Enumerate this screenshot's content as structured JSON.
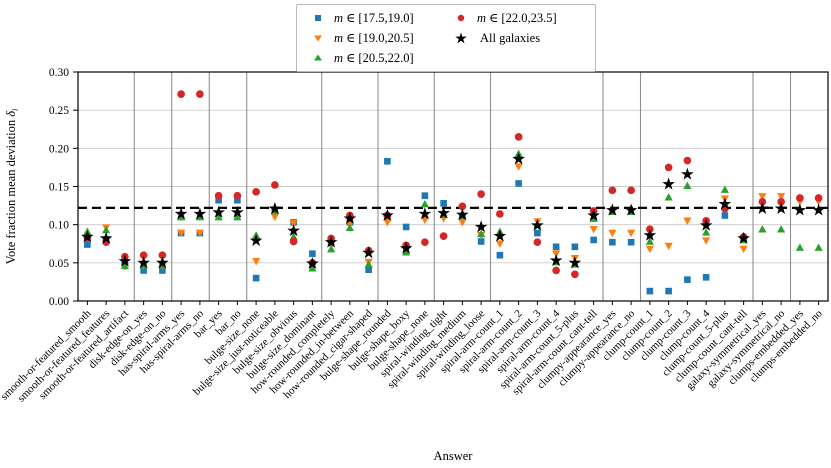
{
  "figure": {
    "xlabel": "Answer",
    "ylabel_text": "Vote fraction mean deviation ",
    "ylabel_symbol": "δ",
    "ylabel_subscript": "i"
  },
  "legend": {
    "items": [
      {
        "var": "m",
        "rest": "∈ [17.5,19.0]",
        "marker": "square",
        "color": "#1f77b4"
      },
      {
        "var": "m",
        "rest": "∈ [19.0,20.5]",
        "marker": "triangle-down",
        "color": "#ff7f0e"
      },
      {
        "var": "m",
        "rest": "∈ [20.5,22.0]",
        "marker": "triangle-up",
        "color": "#2ca02c"
      },
      {
        "var": "m",
        "rest": "∈ [22.0,23.5]",
        "marker": "circle",
        "color": "#d62728"
      },
      {
        "var": "",
        "rest": "All galaxies",
        "marker": "star",
        "color": "#000000"
      }
    ]
  },
  "chart_data": {
    "type": "scatter",
    "title": "",
    "xlabel": "Answer",
    "ylabel": "Vote fraction mean deviation δ_i",
    "ylim": [
      0.0,
      0.3
    ],
    "yticks": [
      "0.00",
      "0.05",
      "0.10",
      "0.15",
      "0.20",
      "0.25",
      "0.30"
    ],
    "grid": true,
    "legend_position": "top-center",
    "dashed_line_y": 0.122,
    "group_separators_after_index": [
      2,
      4,
      6,
      8,
      12,
      15,
      18,
      21,
      27,
      29,
      35,
      37
    ],
    "categories": [
      "smooth-or-featured_smooth",
      "smooth-or-featured_features",
      "smooth-or-featured_artifact",
      "disk-edge-on_yes",
      "disk-edge-on_no",
      "has-spiral-arms_yes",
      "has-spiral-arms_no",
      "bar_yes",
      "bar_no",
      "bulge-size_none",
      "bulge-size_just-noticeable",
      "bulge-size_obvious",
      "bulge-size_dominant",
      "how-rounded_completely",
      "how-rounded_in-between",
      "how-rounded_cigar-shaped",
      "bulge-shape_rounded",
      "bulge-shape_boxy",
      "bulge-shape_none",
      "spiral-winding_tight",
      "spiral-winding_medium",
      "spiral-winding_loose",
      "spiral-arm-count_1",
      "spiral-arm-count_2",
      "spiral-arm-count_3",
      "spiral-arm-count_4",
      "spiral-arm-count_5-plus",
      "spiral-arm-count_cant-tell",
      "clumpy-appearance_yes",
      "clumpy-appearance_no",
      "clump-count_1",
      "clump-count_2",
      "clump-count_3",
      "clump-count_4",
      "clump-count_5-plus",
      "clump-count_cant-tell",
      "galaxy-symmetrical_yes",
      "galaxy-symmetrical_no",
      "clumps-embedded_yes",
      "clumps-embedded_no"
    ],
    "series": [
      {
        "name": "m ∈ [17.5,19.0]",
        "marker": "square",
        "color": "#1f77b4",
        "values": [
          0.074,
          0.08,
          0.051,
          0.04,
          0.04,
          0.089,
          0.089,
          0.132,
          0.132,
          0.03,
          0.118,
          0.103,
          0.062,
          0.076,
          0.103,
          0.041,
          0.183,
          0.097,
          0.138,
          0.128,
          0.11,
          0.078,
          0.06,
          0.154,
          0.089,
          0.071,
          0.071,
          0.08,
          0.077,
          0.077,
          0.013,
          0.013,
          0.028,
          0.031,
          0.112,
          0.082,
          null,
          null,
          null,
          null
        ]
      },
      {
        "name": "m ∈ [19.0,20.5]",
        "marker": "triangle-down",
        "color": "#ff7f0e",
        "values": [
          0.083,
          0.096,
          0.045,
          0.046,
          0.046,
          0.089,
          0.089,
          0.114,
          0.114,
          0.052,
          0.11,
          0.102,
          0.046,
          0.074,
          0.101,
          0.051,
          0.103,
          0.066,
          0.106,
          0.108,
          0.103,
          0.086,
          0.075,
          0.176,
          0.104,
          0.062,
          0.056,
          0.094,
          0.089,
          0.089,
          0.068,
          0.072,
          0.105,
          0.079,
          0.134,
          0.068,
          0.137,
          0.137,
          0.13,
          0.13
        ]
      },
      {
        "name": "m ∈ [20.5,22.0]",
        "marker": "triangle-up",
        "color": "#2ca02c",
        "values": [
          0.091,
          0.093,
          0.046,
          0.047,
          0.047,
          0.11,
          0.11,
          0.11,
          0.11,
          0.086,
          0.118,
          0.084,
          0.043,
          0.068,
          0.096,
          0.048,
          0.114,
          0.064,
          0.127,
          0.113,
          0.112,
          0.088,
          0.091,
          0.193,
          0.1,
          0.051,
          0.048,
          0.108,
          0.117,
          0.117,
          0.078,
          0.136,
          0.151,
          0.09,
          0.146,
          0.08,
          0.094,
          0.094,
          0.07,
          0.07
        ]
      },
      {
        "name": "m ∈ [22.0,23.5]",
        "marker": "circle",
        "color": "#d62728",
        "values": [
          0.083,
          0.077,
          0.058,
          0.06,
          0.06,
          0.271,
          0.271,
          0.138,
          0.138,
          0.143,
          0.152,
          0.078,
          0.05,
          0.082,
          0.112,
          0.066,
          0.112,
          0.073,
          0.077,
          0.085,
          0.124,
          0.14,
          0.114,
          0.215,
          0.077,
          0.04,
          0.035,
          0.118,
          0.145,
          0.145,
          0.094,
          0.175,
          0.184,
          0.105,
          0.121,
          0.084,
          0.13,
          0.13,
          0.135,
          0.135
        ]
      },
      {
        "name": "All galaxies",
        "marker": "star",
        "color": "#000000",
        "values": [
          0.084,
          0.082,
          0.052,
          0.05,
          0.05,
          0.114,
          0.114,
          0.116,
          0.116,
          0.079,
          0.121,
          0.092,
          0.049,
          0.077,
          0.108,
          0.063,
          0.112,
          0.069,
          0.114,
          0.115,
          0.113,
          0.097,
          0.085,
          0.186,
          0.099,
          0.053,
          0.05,
          0.112,
          0.119,
          0.119,
          0.086,
          0.153,
          0.166,
          0.099,
          0.127,
          0.082,
          0.121,
          0.121,
          0.119,
          0.119
        ]
      }
    ]
  }
}
